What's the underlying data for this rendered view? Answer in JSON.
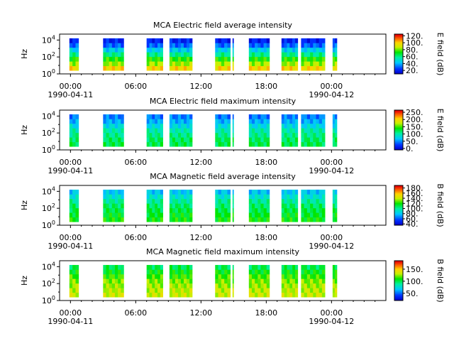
{
  "chart_data": [
    {
      "type": "heatmap",
      "title": "MCA  Electric field average intensity",
      "ylabel": "Hz",
      "y_ticks": [
        "10^0",
        "10^2",
        "10^4"
      ],
      "x_ticks": [
        {
          "time": "00:00",
          "date": "1990-04-11"
        },
        {
          "time": "06:00",
          "date": ""
        },
        {
          "time": "12:00",
          "date": ""
        },
        {
          "time": "18:00",
          "date": ""
        },
        {
          "time": "00:00",
          "date": "1990-04-12"
        }
      ],
      "colorbar_label": "E field (dB)",
      "colorbar_ticks": [
        "20.",
        "40.",
        "60.",
        "80.",
        "100.",
        "120."
      ],
      "colorbar_range": [
        10,
        125
      ],
      "xlim_hours": [
        -1,
        29
      ],
      "ylim_log10": [
        0,
        4.7
      ],
      "coverage_hours": [
        [
          -0.1,
          0.75
        ],
        [
          3,
          4.9
        ],
        [
          7,
          8.5
        ],
        [
          9.1,
          11.2
        ],
        [
          13.3,
          14.7
        ],
        [
          14.9,
          15.0
        ],
        [
          16.4,
          18.3
        ],
        [
          19.4,
          20.9
        ],
        [
          21.2,
          23.4
        ],
        [
          24.1,
          24.5
        ]
      ],
      "band_levels_db": [
        100,
        85,
        75,
        60,
        45,
        30,
        20
      ]
    },
    {
      "type": "heatmap",
      "title": "MCA  Electric field maximum intensity",
      "ylabel": "Hz",
      "y_ticks": [
        "10^0",
        "10^2",
        "10^4"
      ],
      "x_ticks": [
        {
          "time": "00:00",
          "date": "1990-04-11"
        },
        {
          "time": "06:00",
          "date": ""
        },
        {
          "time": "12:00",
          "date": ""
        },
        {
          "time": "18:00",
          "date": ""
        },
        {
          "time": "00:00",
          "date": "1990-04-12"
        }
      ],
      "colorbar_label": "E field (dB)",
      "colorbar_ticks": [
        "0.",
        "50.",
        "100.",
        "150.",
        "200.",
        "250."
      ],
      "colorbar_range": [
        -10,
        265
      ],
      "xlim_hours": [
        -1,
        29
      ],
      "ylim_log10": [
        0,
        4.7
      ],
      "coverage_hours": [
        [
          -0.1,
          0.75
        ],
        [
          3,
          4.9
        ],
        [
          7,
          8.5
        ],
        [
          9.1,
          11.2
        ],
        [
          13.3,
          14.7
        ],
        [
          14.9,
          15.0
        ],
        [
          16.4,
          18.3
        ],
        [
          19.4,
          20.9
        ],
        [
          21.2,
          23.4
        ],
        [
          24.1,
          24.5
        ]
      ],
      "band_levels_db": [
        125,
        120,
        110,
        100,
        80,
        60,
        45
      ]
    },
    {
      "type": "heatmap",
      "title": "MCA  Magnetic field average intensity",
      "ylabel": "Hz",
      "y_ticks": [
        "10^0",
        "10^2",
        "10^4"
      ],
      "x_ticks": [
        {
          "time": "00:00",
          "date": "1990-04-11"
        },
        {
          "time": "06:00",
          "date": ""
        },
        {
          "time": "12:00",
          "date": ""
        },
        {
          "time": "18:00",
          "date": ""
        },
        {
          "time": "00:00",
          "date": "1990-04-12"
        }
      ],
      "colorbar_label": "B field (dB)",
      "colorbar_ticks": [
        "40.",
        "60.",
        "80.",
        "100.",
        "120.",
        "140.",
        "160.",
        "180."
      ],
      "colorbar_range": [
        35,
        190
      ],
      "xlim_hours": [
        -1,
        29
      ],
      "ylim_log10": [
        0,
        4.7
      ],
      "coverage_hours": [
        [
          -0.1,
          0.75
        ],
        [
          3,
          4.9
        ],
        [
          7,
          8.5
        ],
        [
          9.1,
          11.2
        ],
        [
          13.3,
          14.7
        ],
        [
          14.9,
          15.0
        ],
        [
          16.4,
          18.3
        ],
        [
          19.4,
          20.9
        ],
        [
          21.2,
          23.4
        ],
        [
          24.1,
          24.5
        ]
      ],
      "band_levels_db": [
        120,
        116,
        112,
        108,
        100,
        90,
        80
      ]
    },
    {
      "type": "heatmap",
      "title": "MCA  Magnetic field maximum intensity",
      "ylabel": "Hz",
      "y_ticks": [
        "10^0",
        "10^2",
        "10^4"
      ],
      "x_ticks": [
        {
          "time": "00:00",
          "date": "1990-04-11"
        },
        {
          "time": "06:00",
          "date": ""
        },
        {
          "time": "12:00",
          "date": ""
        },
        {
          "time": "18:00",
          "date": ""
        },
        {
          "time": "00:00",
          "date": "1990-04-12"
        }
      ],
      "colorbar_label": "B field (dB)",
      "colorbar_ticks": [
        "50.",
        "100.",
        "150."
      ],
      "colorbar_range": [
        20,
        185
      ],
      "xlim_hours": [
        -1,
        29
      ],
      "ylim_log10": [
        0,
        4.7
      ],
      "coverage_hours": [
        [
          -0.1,
          0.75
        ],
        [
          3,
          4.9
        ],
        [
          7,
          8.5
        ],
        [
          9.1,
          11.2
        ],
        [
          13.3,
          14.7
        ],
        [
          14.9,
          15.0
        ],
        [
          16.4,
          18.3
        ],
        [
          19.4,
          20.9
        ],
        [
          21.2,
          23.4
        ],
        [
          24.1,
          24.5
        ]
      ],
      "band_levels_db": [
        135,
        132,
        128,
        124,
        116,
        108,
        100
      ]
    }
  ]
}
